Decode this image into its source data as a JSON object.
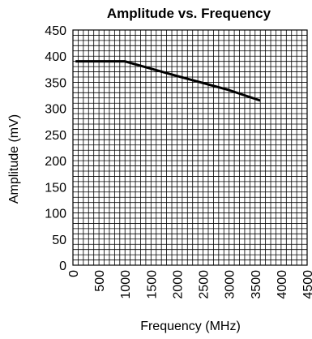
{
  "chart_data": {
    "type": "line",
    "title": "Amplitude vs. Frequency",
    "xlabel": "Frequency (MHz)",
    "ylabel": "Amplitude (mV)",
    "xlim": [
      0,
      4500
    ],
    "ylim": [
      0,
      450
    ],
    "x_ticks": [
      0,
      500,
      1000,
      1500,
      2000,
      2500,
      3000,
      3500,
      4000,
      4500
    ],
    "y_ticks": [
      0,
      50,
      100,
      150,
      200,
      250,
      300,
      350,
      400,
      450
    ],
    "grid": true,
    "minor_step_x": 100,
    "minor_step_y": 10,
    "series": [
      {
        "x": [
          50,
          1000,
          2000,
          3000,
          3600
        ],
        "y": [
          390,
          390,
          362,
          335,
          315
        ]
      }
    ]
  }
}
